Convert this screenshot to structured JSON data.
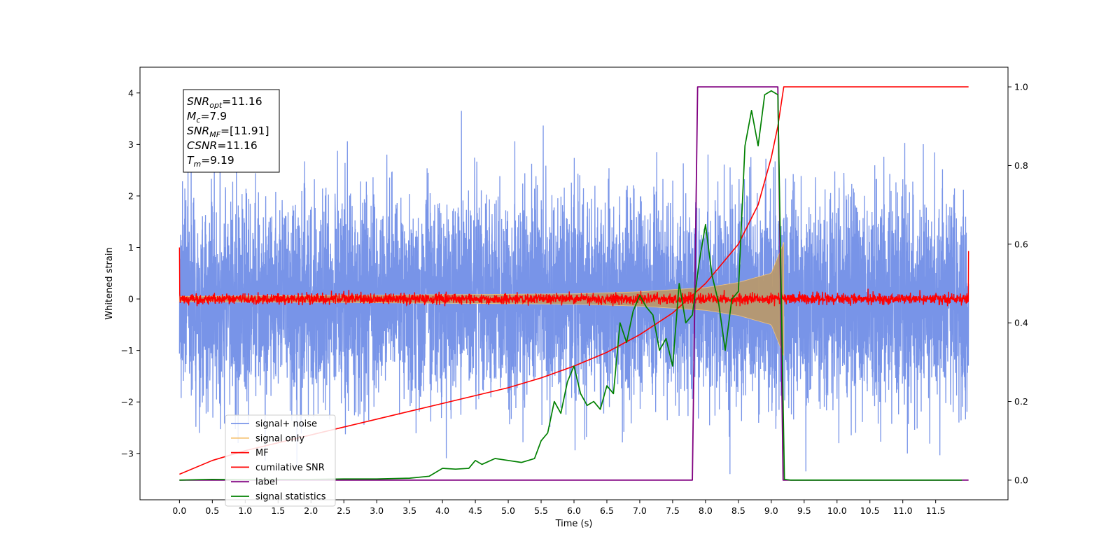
{
  "chart_data": {
    "type": "line",
    "xlabel": "Time (s)",
    "ylabel": "Whitened strain",
    "xlim": [
      -0.6,
      12.6
    ],
    "ylim": [
      -3.9,
      4.5
    ],
    "y2lim": [
      -0.05,
      1.05
    ],
    "x_ticks": [
      "0.0",
      "0.5",
      "1.0",
      "1.5",
      "2.0",
      "2.5",
      "3.0",
      "3.5",
      "4.0",
      "4.5",
      "5.0",
      "5.5",
      "6.0",
      "6.5",
      "7.0",
      "7.5",
      "8.0",
      "8.5",
      "9.0",
      "9.5",
      "10.0",
      "10.5",
      "11.0",
      "11.5"
    ],
    "y_ticks": [
      "−3",
      "−2",
      "−1",
      "0",
      "1",
      "2",
      "3",
      "4"
    ],
    "y2_ticks": [
      "0.0",
      "0.2",
      "0.4",
      "0.6",
      "0.8",
      "1.0"
    ],
    "legend_position": "lower-left",
    "annotation": {
      "lines": [
        {
          "sym": "SNR",
          "sub": "opt",
          "value": "=11.16"
        },
        {
          "sym": "M",
          "sub": "c",
          "value": "=7.9"
        },
        {
          "sym": "SNR",
          "sub": "MF",
          "value": "=[11.91]"
        },
        {
          "sym": "CSNR",
          "sub": "",
          "value": "=11.16"
        },
        {
          "sym": "T",
          "sub": "m",
          "value": "=9.19"
        }
      ]
    },
    "series": [
      {
        "name": "signal+ noise",
        "axis": "left",
        "color": "#7894e8",
        "kind": "noise",
        "x_range": [
          0.0,
          12.0
        ],
        "amplitude_std": 1.0,
        "y_extent": [
          -3.4,
          4.15
        ]
      },
      {
        "name": "signal only",
        "axis": "left",
        "color": "#f5c57a",
        "kind": "chirp",
        "x_range": [
          0.0,
          9.19
        ],
        "envelope": [
          [
            0.0,
            0.05
          ],
          [
            6.0,
            0.1
          ],
          [
            7.0,
            0.14
          ],
          [
            8.0,
            0.22
          ],
          [
            8.5,
            0.32
          ],
          [
            9.0,
            0.5
          ],
          [
            9.19,
            1.1
          ]
        ]
      },
      {
        "name": "MF",
        "axis": "left",
        "color": "#ff0000",
        "kind": "mf",
        "x_range": [
          0.0,
          12.0
        ],
        "amplitude_std": 0.05,
        "endpoints": [
          [
            0.0,
            1.0
          ],
          [
            12.0,
            0.93
          ]
        ]
      },
      {
        "name": "cumilative SNR",
        "axis": "right",
        "color": "#ff0000",
        "x": [
          0.0,
          0.5,
          1.0,
          1.5,
          2.0,
          2.5,
          3.0,
          3.5,
          4.0,
          4.5,
          5.0,
          5.5,
          6.0,
          6.5,
          7.0,
          7.5,
          8.0,
          8.5,
          8.8,
          9.0,
          9.1,
          9.19,
          12.0
        ],
        "y": [
          0.015,
          0.05,
          0.075,
          0.095,
          0.115,
          0.135,
          0.155,
          0.175,
          0.195,
          0.215,
          0.235,
          0.26,
          0.29,
          0.325,
          0.37,
          0.425,
          0.5,
          0.6,
          0.7,
          0.82,
          0.9,
          1.0,
          1.0
        ]
      },
      {
        "name": "label",
        "axis": "right",
        "color": "#800080",
        "x": [
          0.0,
          7.8,
          7.88,
          9.1,
          9.18,
          12.0
        ],
        "y": [
          0.0,
          0.0,
          1.0,
          1.0,
          0.0,
          0.0
        ]
      },
      {
        "name": "signal statistics",
        "axis": "right",
        "color": "#008000",
        "x": [
          0.0,
          0.5,
          1.0,
          1.5,
          2.0,
          2.5,
          3.0,
          3.5,
          3.8,
          4.0,
          4.2,
          4.4,
          4.5,
          4.6,
          4.8,
          5.0,
          5.2,
          5.4,
          5.5,
          5.6,
          5.7,
          5.8,
          5.9,
          6.0,
          6.1,
          6.2,
          6.3,
          6.4,
          6.5,
          6.6,
          6.7,
          6.8,
          6.9,
          7.0,
          7.1,
          7.2,
          7.3,
          7.4,
          7.5,
          7.6,
          7.7,
          7.8,
          7.9,
          8.0,
          8.1,
          8.2,
          8.3,
          8.4,
          8.5,
          8.6,
          8.7,
          8.8,
          8.9,
          9.0,
          9.1,
          9.2,
          9.3,
          9.5,
          10.0,
          11.0,
          11.9
        ],
        "y": [
          0.0,
          0.002,
          0.001,
          0.002,
          0.002,
          0.003,
          0.003,
          0.005,
          0.01,
          0.03,
          0.028,
          0.03,
          0.05,
          0.04,
          0.055,
          0.05,
          0.045,
          0.055,
          0.1,
          0.12,
          0.2,
          0.17,
          0.25,
          0.29,
          0.22,
          0.19,
          0.2,
          0.18,
          0.24,
          0.22,
          0.4,
          0.35,
          0.43,
          0.47,
          0.44,
          0.42,
          0.33,
          0.36,
          0.29,
          0.5,
          0.4,
          0.42,
          0.55,
          0.65,
          0.52,
          0.45,
          0.33,
          0.46,
          0.48,
          0.85,
          0.94,
          0.85,
          0.98,
          0.99,
          0.98,
          0.002,
          0.0,
          0.0,
          0.0,
          0.0,
          0.0
        ]
      }
    ]
  }
}
